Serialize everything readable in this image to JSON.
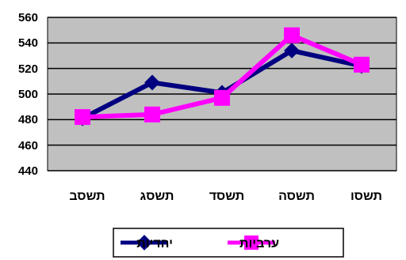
{
  "chart_data": {
    "type": "line",
    "title": "",
    "xlabel": "",
    "ylabel": "",
    "categories": [
      "תשסב",
      "תשסג",
      "תשסד",
      "תשסה",
      "תשסו"
    ],
    "y_ticks": [
      "440",
      "460",
      "480",
      "500",
      "520",
      "540",
      "560"
    ],
    "ylim": [
      440,
      560
    ],
    "grid": true,
    "legend_position": "bottom",
    "plot_background": "#c0c0c0",
    "series": [
      {
        "name": "יהדיות",
        "values": [
          481,
          509,
          501,
          534,
          522
        ],
        "color": "#000080",
        "marker": "diamond"
      },
      {
        "name": "ערביות",
        "values": [
          482,
          484,
          497,
          546,
          523
        ],
        "color": "#ff00ff",
        "marker": "square"
      }
    ]
  }
}
